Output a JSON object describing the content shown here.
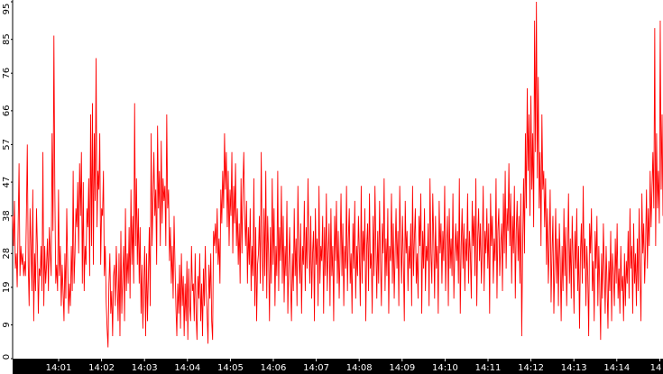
{
  "chart_data": {
    "type": "line",
    "title": "",
    "xlabel": "",
    "ylabel": "",
    "ylim": [
      0,
      95
    ],
    "yticks": [
      "0",
      "9",
      "19",
      "28",
      "38",
      "47",
      "57",
      "66",
      "76",
      "85",
      "95"
    ],
    "xticks": [
      "14:01",
      "14:02",
      "14:03",
      "14:04",
      "14:05",
      "14:06",
      "14:07",
      "14:08",
      "14:09",
      "14:10",
      "14:11",
      "14:12",
      "14:13",
      "14:14",
      "14"
    ],
    "grid": false,
    "colors": {
      "series": "#ff0000",
      "axis_bg": "#000000",
      "background": "#ffffff"
    },
    "series": [
      {
        "values": [
          38,
          30,
          42,
          24,
          28,
          19,
          35,
          52,
          22,
          30,
          25,
          28,
          22,
          26,
          22,
          38,
          57,
          25,
          14,
          40,
          30,
          18,
          45,
          10,
          28,
          18,
          40,
          30,
          12,
          24,
          22,
          30,
          18,
          55,
          14,
          30,
          20,
          25,
          32,
          18,
          35,
          28,
          22,
          60,
          34,
          86,
          45,
          20,
          25,
          18,
          45,
          22,
          30,
          14,
          25,
          18,
          10,
          28,
          16,
          40,
          25,
          12,
          20,
          14,
          30,
          18,
          50,
          20,
          28,
          40,
          35,
          47,
          28,
          52,
          38,
          55,
          20,
          47,
          18,
          30,
          25,
          40,
          35,
          48,
          22,
          65,
          30,
          68,
          25,
          60,
          42,
          80,
          35,
          50,
          45,
          60,
          25,
          40,
          38,
          50,
          22,
          30,
          15,
          8,
          3,
          20,
          28,
          12,
          18,
          6,
          22,
          25,
          14,
          30,
          20,
          10,
          28,
          6,
          34,
          12,
          22,
          30,
          10,
          40,
          18,
          28,
          20,
          35,
          16,
          45,
          25,
          38,
          20,
          68,
          30,
          48,
          25,
          40,
          20,
          35,
          12,
          25,
          8,
          20,
          30,
          6,
          28,
          10,
          22,
          35,
          14,
          60,
          30,
          42,
          55,
          38,
          45,
          25,
          62,
          40,
          50,
          30,
          58,
          36,
          48,
          42,
          46,
          30,
          65,
          40,
          45,
          26,
          35,
          20,
          30,
          16,
          38,
          25,
          14,
          6,
          20,
          12,
          25,
          8,
          28,
          14,
          22,
          6,
          20,
          10,
          26,
          5,
          24,
          14,
          10,
          30,
          18,
          20,
          10,
          28,
          12,
          5,
          22,
          16,
          28,
          10,
          20,
          6,
          24,
          14,
          30,
          18,
          12,
          4,
          25,
          16,
          28,
          10,
          5,
          34,
          30,
          36,
          28,
          40,
          25,
          32,
          20,
          45,
          36,
          50,
          40,
          60,
          45,
          55,
          35,
          50,
          30,
          45,
          38,
          55,
          28,
          46,
          36,
          52,
          30,
          40,
          25,
          36,
          20,
          48,
          28,
          45,
          55,
          38,
          30,
          42,
          20,
          35,
          25,
          40,
          18,
          30,
          22,
          48,
          14,
          35,
          10,
          25,
          28,
          38,
          20,
          55,
          30,
          18,
          40,
          22,
          50,
          16,
          38,
          28,
          10,
          35,
          20,
          48,
          25,
          40,
          14,
          30,
          22,
          50,
          18,
          35,
          26,
          46,
          20,
          38,
          15,
          30,
          22,
          42,
          12,
          25,
          35,
          20,
          10,
          28,
          18,
          40,
          22,
          32,
          14,
          46,
          28,
          20,
          36,
          12,
          30,
          25,
          42,
          18,
          35,
          24,
          48,
          30,
          20,
          38,
          16,
          28,
          34,
          10,
          40,
          25,
          32,
          14,
          46,
          20,
          30,
          26,
          38,
          12,
          35,
          22,
          44,
          18,
          28,
          36,
          14,
          40,
          22,
          30,
          10,
          38,
          26,
          42,
          20,
          34,
          16,
          28,
          44,
          22,
          36,
          14,
          30,
          24,
          46,
          18,
          32,
          40,
          20,
          28,
          12,
          36,
          24,
          42,
          16,
          30,
          22,
          38,
          28,
          14,
          46,
          20,
          34,
          26,
          40,
          10,
          30,
          36,
          18,
          44,
          24,
          28,
          12,
          38,
          22,
          46,
          30,
          16,
          34,
          20,
          42,
          26,
          14,
          36,
          28,
          48,
          18,
          32,
          22,
          40,
          12,
          30,
          26,
          44,
          20,
          36,
          16,
          28,
          40,
          24,
          34,
          14,
          46,
          30,
          20,
          38,
          26,
          10,
          42,
          28,
          34,
          18,
          30,
          24,
          36,
          14,
          46,
          22,
          32,
          40,
          20,
          28,
          16,
          38,
          30,
          44,
          12,
          34,
          24,
          40,
          18,
          30,
          26,
          36,
          14,
          48,
          28,
          20,
          44,
          32,
          16,
          38,
          24,
          30,
          12,
          42,
          28,
          36,
          20,
          34,
          26,
          46,
          18,
          30,
          38,
          14,
          40,
          24,
          32,
          22,
          44,
          16,
          28,
          36,
          26,
          34,
          20,
          48,
          12,
          30,
          40,
          24,
          36,
          18,
          32,
          26,
          44,
          20,
          34,
          28,
          16,
          42,
          30,
          38,
          22,
          48,
          14,
          32,
          40,
          26,
          36,
          20,
          30,
          46,
          18,
          34,
          28,
          40,
          24,
          36,
          12,
          44,
          30,
          38,
          20,
          32,
          26,
          48,
          16,
          34,
          40,
          22,
          30,
          36,
          18,
          44,
          28,
          50,
          24,
          40,
          34,
          52,
          30,
          44,
          20,
          38,
          28,
          46,
          16,
          34,
          42,
          26,
          38,
          20,
          44,
          6,
          30,
          48,
          28,
          60,
          40,
          72,
          50,
          65,
          38,
          70,
          45,
          60,
          35,
          90,
          55,
          95,
          48,
          75,
          40,
          55,
          30,
          65,
          45,
          50,
          35,
          48,
          25,
          40,
          20,
          30,
          45,
          15,
          28,
          38,
          12,
          25,
          40,
          20,
          32,
          14,
          36,
          26,
          10,
          30,
          18,
          40,
          22,
          35,
          14,
          28,
          44,
          20,
          32,
          16,
          38,
          26,
          12,
          34,
          24,
          40,
          18,
          30,
          8,
          28,
          36,
          20,
          46,
          24,
          32,
          14,
          30,
          22,
          6,
          36,
          28,
          40,
          18,
          26,
          10,
          34,
          24,
          38,
          14,
          30,
          20,
          5,
          28,
          16,
          36,
          24,
          12,
          30,
          20,
          8,
          26,
          18,
          34,
          10,
          28,
          22,
          14,
          32,
          20,
          36,
          16,
          24,
          12,
          30,
          18,
          22,
          10,
          28,
          14,
          26,
          20,
          34,
          16,
          40,
          24,
          30,
          12,
          36,
          20,
          28,
          14,
          32,
          18,
          40,
          22,
          10,
          44,
          28,
          36,
          20,
          30,
          45,
          24,
          40,
          30,
          50,
          35,
          45,
          55,
          40,
          88,
          30,
          60,
          40,
          50,
          36,
          90,
          45,
          65,
          38
        ]
      }
    ]
  }
}
